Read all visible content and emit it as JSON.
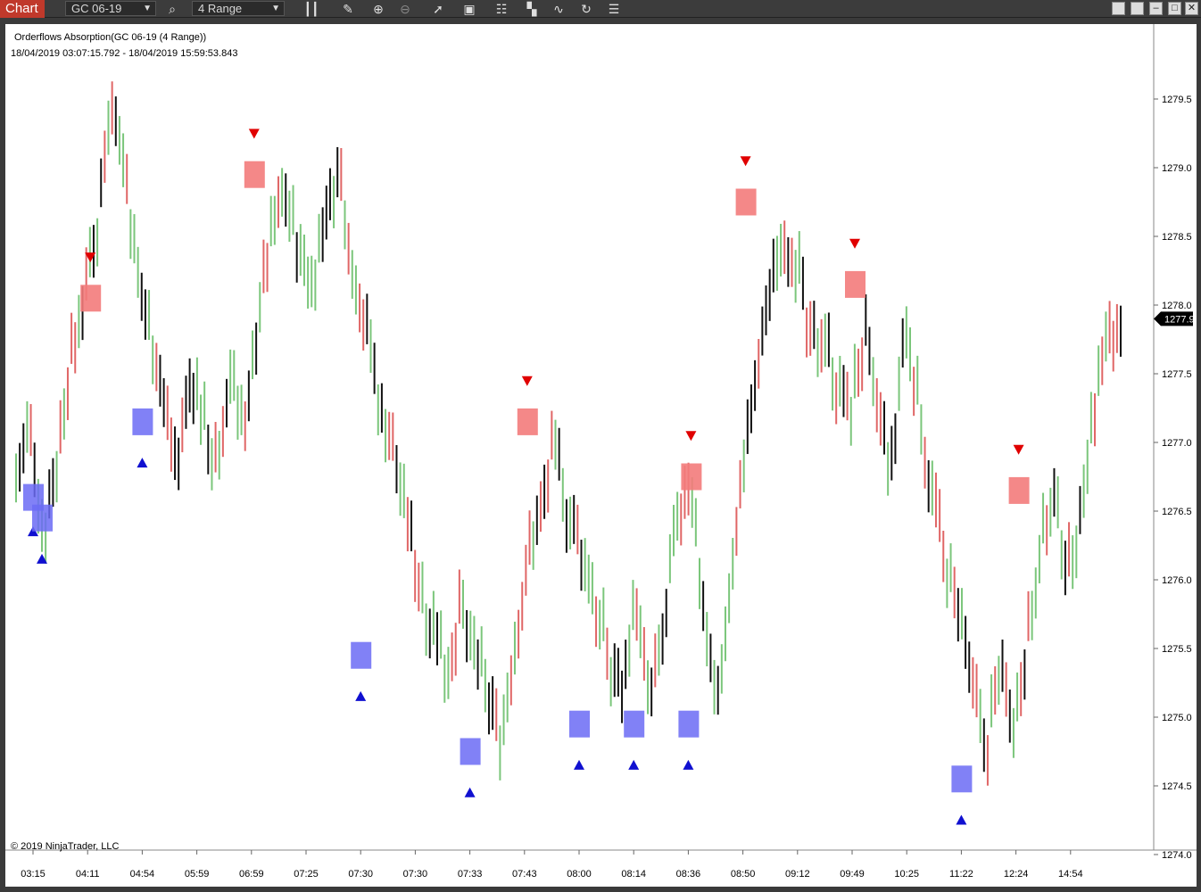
{
  "toolbar": {
    "chart_tab": "Chart",
    "instrument": "GC 06-19",
    "interval": "4 Range",
    "icons": [
      "search-icon",
      "bar-type-icon",
      "pencil-icon",
      "zoom-in-icon",
      "zoom-out-icon",
      "pointer-icon",
      "data-box-icon",
      "strategies-icon",
      "indicators-icon",
      "drawing-icon",
      "refresh-icon",
      "properties-icon"
    ],
    "window_buttons": [
      "tile-icon",
      "tile-alt-icon",
      "minimize-icon",
      "maximize-icon",
      "close-icon"
    ]
  },
  "chart": {
    "indicator_label": "Orderflows Absorption(GC 06-19 (4 Range))",
    "date_range": "18/04/2019 03:07:15.792 - 18/04/2019 15:59:53.843",
    "copyright": "© 2019 NinjaTrader, LLC",
    "current_price": "1277.9"
  },
  "chart_data": {
    "type": "bar",
    "instrument": "GC 06-19",
    "bar_type": "4 Range",
    "y_range": [
      1274.0,
      1280.0
    ],
    "y_ticks": [
      "1279.5",
      "1279.0",
      "1278.5",
      "1278.0",
      "1277.5",
      "1277.0",
      "1276.5",
      "1276.0",
      "1275.5",
      "1275.0",
      "1274.5",
      "1274.0"
    ],
    "x_ticks": [
      "03:15",
      "04:11",
      "04:54",
      "05:59",
      "06:59",
      "07:25",
      "07:30",
      "07:30",
      "07:33",
      "07:43",
      "08:00",
      "08:14",
      "08:36",
      "08:50",
      "09:12",
      "09:49",
      "10:25",
      "11:22",
      "12:24",
      "14:54"
    ],
    "last_price": 1277.9,
    "colors": {
      "up": "#7bc67b",
      "down": "#e06666",
      "neutral": "#111111",
      "buy_absorption": "#6b6bf5",
      "sell_absorption": "#f37b7b",
      "buy_signal": "#1010d0",
      "sell_signal": "#e00000"
    },
    "path": [
      1276.8,
      1277.1,
      1276.4,
      1276.9,
      1277.6,
      1278.1,
      1278.6,
      1279.6,
      1279.1,
      1278.2,
      1277.9,
      1277.3,
      1276.9,
      1277.5,
      1277.2,
      1276.8,
      1277.6,
      1277.1,
      1278.0,
      1278.6,
      1278.9,
      1278.4,
      1278.2,
      1278.7,
      1279.0,
      1278.3,
      1277.9,
      1277.3,
      1277.0,
      1276.5,
      1276.0,
      1275.7,
      1275.4,
      1275.8,
      1275.5,
      1275.2,
      1274.9,
      1275.5,
      1276.2,
      1276.6,
      1277.0,
      1276.5,
      1276.2,
      1275.9,
      1275.4,
      1275.3,
      1275.9,
      1275.1,
      1275.6,
      1276.4,
      1276.8,
      1275.9,
      1275.1,
      1276.0,
      1276.9,
      1277.5,
      1278.2,
      1278.6,
      1278.3,
      1277.7,
      1277.9,
      1277.4,
      1277.3,
      1277.8,
      1277.2,
      1276.8,
      1277.9,
      1277.3,
      1276.7,
      1276.1,
      1275.8,
      1275.2,
      1274.8,
      1275.4,
      1275.0,
      1275.6,
      1276.3,
      1276.6,
      1276.1,
      1276.5,
      1277.3,
      1277.8,
      1277.9
    ],
    "absorption_buy": [
      {
        "time": "03:15",
        "price": 1276.6,
        "signal": 1276.35
      },
      {
        "time": "03:15",
        "price": 1276.45,
        "signal": 1276.15
      },
      {
        "time": "04:54",
        "price": 1277.15,
        "signal": 1276.85
      },
      {
        "time": "07:30",
        "price": 1275.45,
        "signal": 1275.15
      },
      {
        "time": "07:33",
        "price": 1274.75,
        "signal": 1274.45
      },
      {
        "time": "08:00",
        "price": 1274.95,
        "signal": 1274.65
      },
      {
        "time": "08:14",
        "price": 1274.95,
        "signal": 1274.65
      },
      {
        "time": "08:36",
        "price": 1274.95,
        "signal": 1274.65
      },
      {
        "time": "11:22",
        "price": 1274.55,
        "signal": 1274.25
      }
    ],
    "absorption_sell": [
      {
        "time": "04:11",
        "price": 1278.05,
        "signal": 1278.35
      },
      {
        "time": "06:59",
        "price": 1278.95,
        "signal": 1279.25
      },
      {
        "time": "07:43",
        "price": 1277.15,
        "signal": 1277.45
      },
      {
        "time": "08:36",
        "price": 1276.75,
        "signal": 1277.05
      },
      {
        "time": "08:50",
        "price": 1278.75,
        "signal": 1279.05
      },
      {
        "time": "09:49",
        "price": 1278.15,
        "signal": 1278.45
      },
      {
        "time": "12:24",
        "price": 1276.65,
        "signal": 1276.95
      }
    ]
  }
}
